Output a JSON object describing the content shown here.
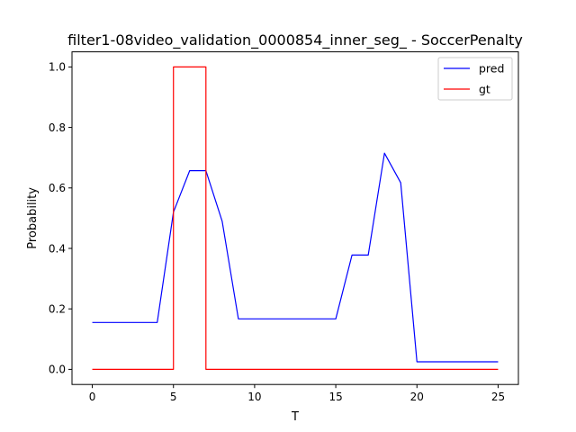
{
  "chart_data": {
    "type": "line",
    "title": "filter1-08video_validation_0000854_inner_seg_ - SoccerPenalty",
    "xlabel": "T",
    "ylabel": "Probability",
    "xlim": [
      -1.25,
      26.25
    ],
    "ylim": [
      -0.05,
      1.05
    ],
    "xticks": [
      0,
      5,
      10,
      15,
      20,
      25
    ],
    "yticks": [
      0.0,
      0.2,
      0.4,
      0.6,
      0.8,
      1.0
    ],
    "xtick_labels": [
      "0",
      "5",
      "10",
      "15",
      "20",
      "25"
    ],
    "ytick_labels": [
      "0.0",
      "0.2",
      "0.4",
      "0.6",
      "0.8",
      "1.0"
    ],
    "grid": false,
    "legend_position": "upper right",
    "series": [
      {
        "name": "pred",
        "color": "#0000ff",
        "step": false,
        "x": [
          0,
          1,
          2,
          3,
          4,
          5,
          6,
          7,
          8,
          9,
          10,
          11,
          12,
          13,
          14,
          15,
          16,
          17,
          18,
          19,
          20,
          21,
          22,
          23,
          24,
          25
        ],
        "y": [
          0.155,
          0.155,
          0.155,
          0.155,
          0.155,
          0.52,
          0.657,
          0.657,
          0.49,
          0.167,
          0.167,
          0.167,
          0.167,
          0.167,
          0.167,
          0.167,
          0.378,
          0.378,
          0.715,
          0.617,
          0.025,
          0.025,
          0.025,
          0.025,
          0.025,
          0.025
        ]
      },
      {
        "name": "gt",
        "color": "#ff0000",
        "step": true,
        "x": [
          0,
          1,
          2,
          3,
          4,
          5,
          6,
          7,
          8,
          9,
          10,
          11,
          12,
          13,
          14,
          15,
          16,
          17,
          18,
          19,
          20,
          21,
          22,
          23,
          24,
          25
        ],
        "y": [
          0,
          0,
          0,
          0,
          0,
          1,
          1,
          0,
          0,
          0,
          0,
          0,
          0,
          0,
          0,
          0,
          0,
          0,
          0,
          0,
          0,
          0,
          0,
          0,
          0,
          0
        ]
      }
    ]
  }
}
